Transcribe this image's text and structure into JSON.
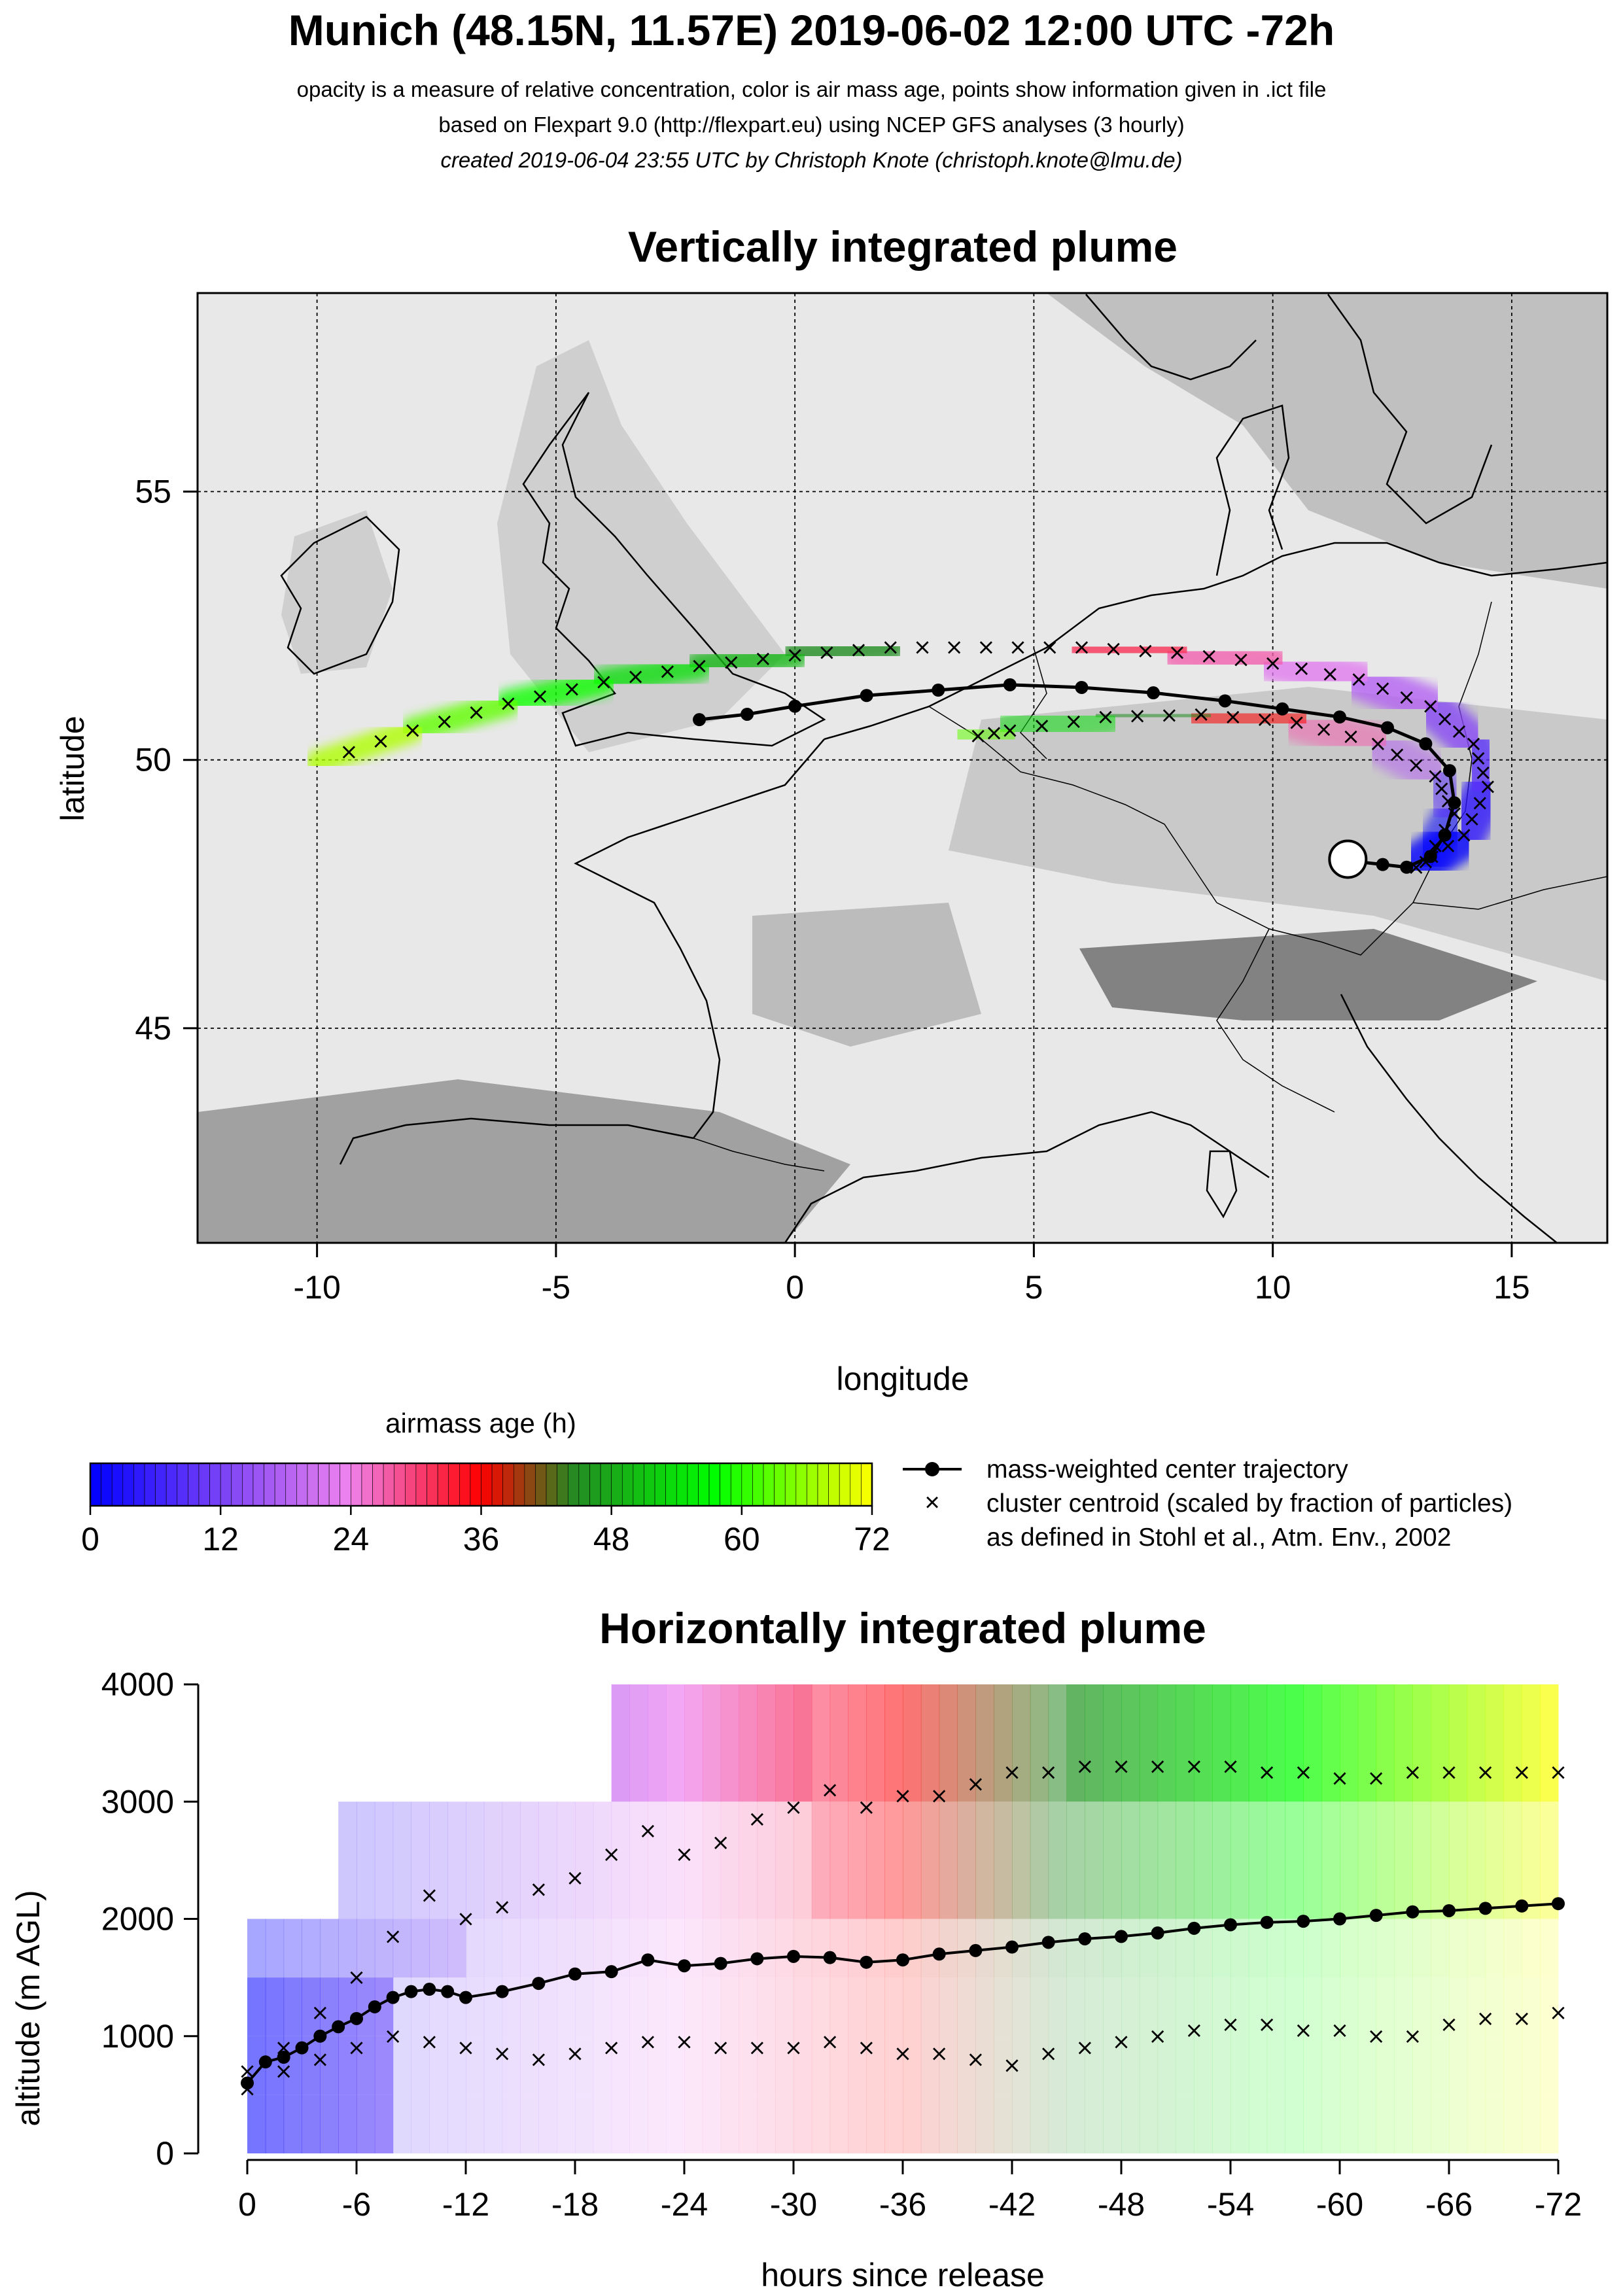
{
  "page": {
    "title": "Munich (48.15N, 11.57E) 2019-06-02 12:00 UTC -72h",
    "subtitle_1": "opacity is a measure of relative concentration, color is air mass age, points show information given in .ict file",
    "subtitle_2": "based on Flexpart 9.0 (http://flexpart.eu) using NCEP GFS analyses (3 hourly)",
    "subtitle_3": "created 2019-06-04 23:55 UTC by Christoph Knote (christoph.knote@lmu.de)"
  },
  "chart_data": [
    {
      "type": "map",
      "title": "Vertically integrated plume",
      "xlabel": "longitude",
      "ylabel": "latitude",
      "xlim": [
        -12.5,
        17
      ],
      "ylim": [
        41,
        58.7
      ],
      "x_ticks": [
        -10,
        -5,
        0,
        5,
        10,
        15
      ],
      "y_ticks": [
        45,
        50,
        55
      ],
      "grid": true,
      "release_site": {
        "lon": 11.57,
        "lat": 48.15
      },
      "center_trajectory": {
        "lon": [
          11.57,
          11.8,
          12.3,
          12.8,
          13.3,
          13.6,
          13.8,
          13.7,
          13.2,
          12.4,
          11.4,
          10.2,
          9.0,
          7.5,
          6.0,
          4.5,
          3.0,
          1.5,
          0.0,
          -1.0,
          -2.0
        ],
        "lat": [
          48.15,
          48.1,
          48.05,
          48.0,
          48.2,
          48.6,
          49.2,
          49.8,
          50.3,
          50.6,
          50.8,
          50.95,
          51.1,
          51.25,
          51.35,
          51.4,
          51.3,
          51.2,
          51.0,
          50.85,
          50.75
        ]
      },
      "cluster_arcs": [
        {
          "lon": [
            13.0,
            14.0,
            14.5,
            14.2,
            13.3,
            11.8,
            10.0,
            8.0,
            6.0,
            4.0,
            2.0,
            0.0,
            -2.0,
            -4.0,
            -6.0,
            -8.0,
            -10.0
          ],
          "lat": [
            48.0,
            48.6,
            49.5,
            50.3,
            51.0,
            51.5,
            51.8,
            52.0,
            52.1,
            52.1,
            52.1,
            51.95,
            51.75,
            51.45,
            51.05,
            50.55,
            49.95
          ]
        },
        {
          "lon": [
            13.2,
            13.8,
            13.4,
            12.2,
            10.5,
            8.5,
            6.5,
            4.5,
            3.5
          ],
          "lat": [
            48.1,
            49.0,
            49.7,
            50.3,
            50.7,
            50.85,
            50.8,
            50.55,
            50.4
          ]
        }
      ]
    },
    {
      "type": "colorbar",
      "title": "airmass age (h)",
      "range": [
        0,
        72
      ],
      "ticks": [
        "0",
        "12",
        "24",
        "36",
        "48",
        "60",
        "72"
      ],
      "colors": [
        "#0000ff",
        "#ee82ee",
        "#ff0000",
        "#228b22",
        "#00ff00",
        "#ffff00"
      ]
    },
    {
      "type": "legend",
      "entries": [
        "mass-weighted center trajectory",
        "cluster centroid (scaled by fraction of particles)",
        "as defined in Stohl et al., Atm. Env., 2002"
      ]
    },
    {
      "type": "line",
      "title": "Horizontally integrated plume",
      "xlabel": "hours since release",
      "ylabel": "altitude (m AGL)",
      "xlim": [
        0,
        -72
      ],
      "ylim": [
        0,
        4000
      ],
      "x_ticks": [
        "0",
        "-6",
        "-12",
        "-18",
        "-24",
        "-30",
        "-36",
        "-42",
        "-48",
        "-54",
        "-60",
        "-66",
        "-72"
      ],
      "y_ticks": [
        "0",
        "1000",
        "2000",
        "3000",
        "4000"
      ],
      "series": [
        {
          "x": [
            0,
            -1,
            -2,
            -3,
            -4,
            -5,
            -6,
            -7,
            -8,
            -9,
            -10,
            -11,
            -12,
            -14,
            -16,
            -18,
            -20,
            -22,
            -24,
            -26,
            -28,
            -30,
            -32,
            -34,
            -36,
            -38,
            -40,
            -42,
            -44,
            -46,
            -48,
            -50,
            -52,
            -54,
            -56,
            -58,
            -60,
            -62,
            -64,
            -66,
            -68,
            -70,
            -72
          ],
          "y": [
            600,
            780,
            820,
            900,
            1000,
            1080,
            1150,
            1250,
            1330,
            1380,
            1400,
            1380,
            1330,
            1380,
            1450,
            1530,
            1550,
            1650,
            1600,
            1620,
            1660,
            1680,
            1670,
            1630,
            1650,
            1700,
            1730,
            1760,
            1800,
            1830,
            1850,
            1880,
            1920,
            1950,
            1970,
            1980,
            2000,
            2030,
            2060,
            2070,
            2090,
            2110,
            2130
          ]
        },
        {
          "x": [
            0,
            -2,
            -4,
            -6,
            -8,
            -10,
            -12,
            -14,
            -16,
            -18,
            -20,
            -22,
            -24,
            -26,
            -28,
            -30,
            -32,
            -34,
            -36,
            -38,
            -40,
            -42,
            -44,
            -46,
            -48,
            -50,
            -52,
            -54,
            -56,
            -58,
            -60,
            -62,
            -64,
            -66,
            -68,
            -70,
            -72
          ],
          "y": [
            700,
            900,
            1200,
            1500,
            1850,
            2200,
            2000,
            2100,
            2250,
            2350,
            2550,
            2750,
            2550,
            2650,
            2850,
            2950,
            3100,
            2950,
            3050,
            3050,
            3150,
            3250,
            3250,
            3300,
            3300,
            3300,
            3300,
            3300,
            3250,
            3250,
            3200,
            3200,
            3250,
            3250,
            3250,
            3250,
            3250
          ]
        },
        {
          "x": [
            0,
            -2,
            -4,
            -6,
            -8,
            -10,
            -12,
            -14,
            -16,
            -18,
            -20,
            -22,
            -24,
            -26,
            -28,
            -30,
            -32,
            -34,
            -36,
            -38,
            -40,
            -42,
            -44,
            -46,
            -48,
            -50,
            -52,
            -54,
            -56,
            -58,
            -60,
            -62,
            -64,
            -66,
            -68,
            -70,
            -72
          ],
          "y": [
            550,
            700,
            800,
            900,
            1000,
            950,
            900,
            850,
            800,
            850,
            900,
            950,
            950,
            900,
            900,
            900,
            950,
            900,
            850,
            850,
            800,
            750,
            850,
            900,
            950,
            1000,
            1050,
            1100,
            1100,
            1050,
            1050,
            1000,
            1000,
            1100,
            1150,
            1150,
            1200
          ]
        }
      ]
    }
  ]
}
